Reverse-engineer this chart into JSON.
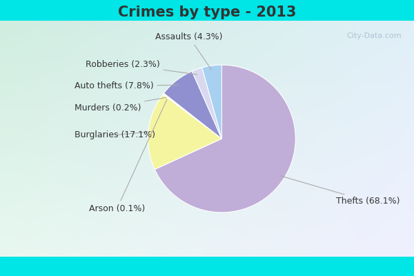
{
  "title": "Crimes by type - 2013",
  "labels": [
    "Thefts",
    "Burglaries",
    "Arson",
    "Murders",
    "Auto thefts",
    "Robberies",
    "Assaults"
  ],
  "values": [
    68.1,
    17.1,
    0.1,
    0.2,
    7.8,
    2.3,
    4.3
  ],
  "colors": [
    "#c0aed8",
    "#f5f5a0",
    "#d0c8e8",
    "#f5c8a0",
    "#9090d0",
    "#d8d8f0",
    "#a8d0f0"
  ],
  "background_top": "#00e5e5",
  "background_main_tl": "#d0ede0",
  "background_main_br": "#d0dff0",
  "title_fontsize": 15,
  "label_fontsize": 9,
  "title_color": "#333333",
  "label_color": "#333333",
  "watermark": "City-Data.com",
  "watermark_color": "#aabbcc"
}
